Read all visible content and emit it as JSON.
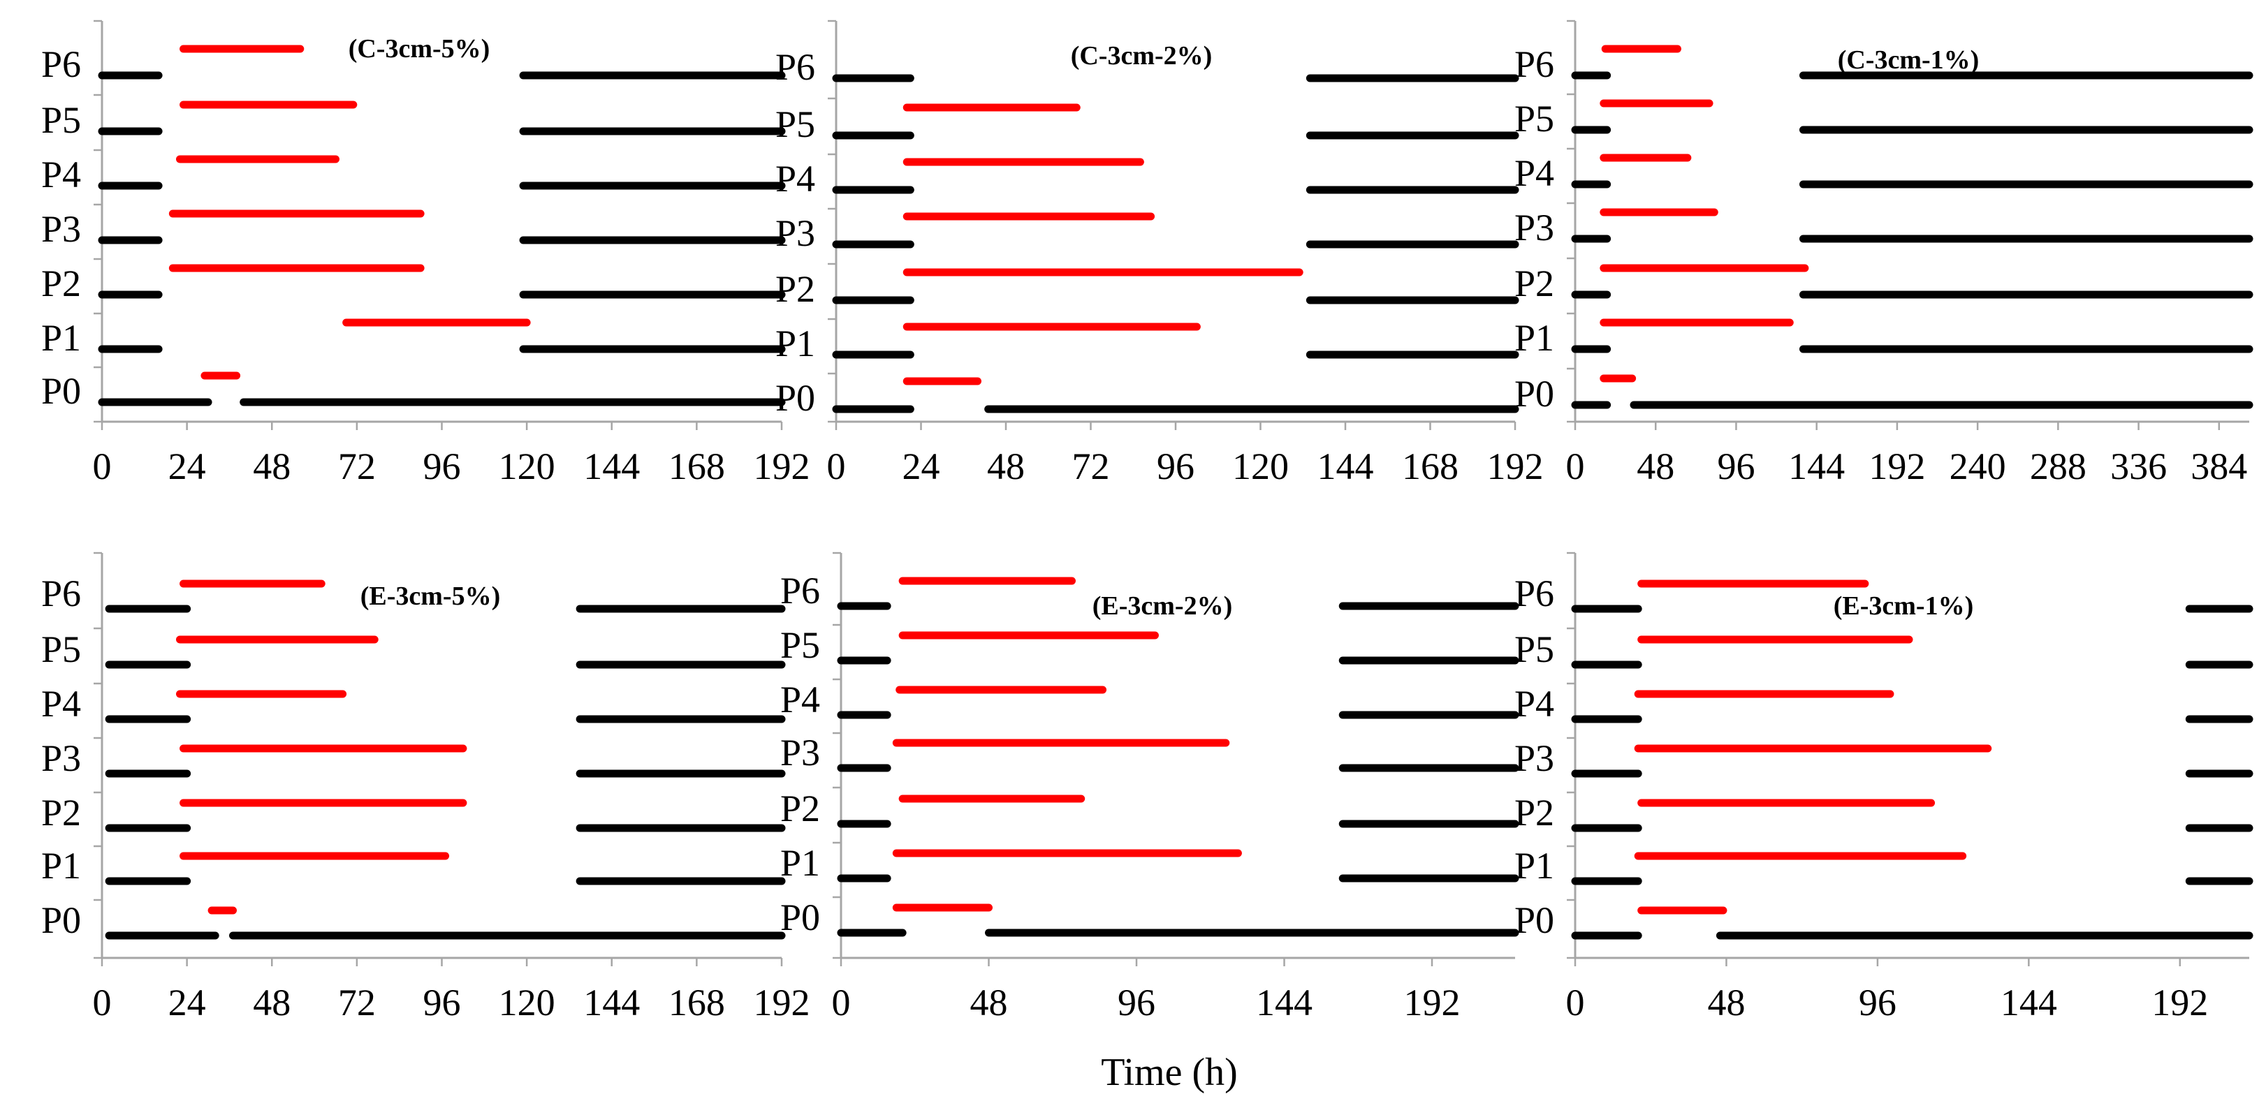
{
  "figure": {
    "xlabel": "Time (h)",
    "colors": {
      "active": "#000000",
      "inactive": "#ff0000",
      "axis": "#a6a6a6"
    }
  },
  "chart_data": [
    {
      "type": "gantt",
      "title": "(C-3cm-5%)",
      "xlim": [
        0,
        192
      ],
      "xticks": [
        0,
        24,
        48,
        72,
        96,
        120,
        144,
        168,
        192
      ],
      "categories": [
        "P0",
        "P1",
        "P2",
        "P3",
        "P4",
        "P5",
        "P6"
      ],
      "series": [
        {
          "name": "black",
          "bars": [
            [
              0,
              30
            ],
            [
              40,
              192
            ],
            [
              0,
              16
            ],
            [
              119,
              192
            ],
            [
              0,
              16
            ],
            [
              119,
              192
            ],
            [
              0,
              16
            ],
            [
              119,
              192
            ],
            [
              0,
              16
            ],
            [
              119,
              192
            ],
            [
              0,
              16
            ],
            [
              119,
              192
            ],
            [
              0,
              16
            ],
            [
              119,
              192
            ]
          ]
        },
        {
          "name": "red",
          "bars": [
            [
              29,
              38
            ],
            [
              69,
              120
            ],
            [
              20,
              90
            ],
            [
              20,
              90
            ],
            [
              22,
              66
            ],
            [
              23,
              71
            ],
            [
              23,
              56
            ]
          ]
        }
      ]
    },
    {
      "type": "gantt",
      "title": "(C-3cm-2%)",
      "xlim": [
        0,
        192
      ],
      "xticks": [
        0,
        24,
        48,
        72,
        96,
        120,
        144,
        168,
        192
      ],
      "categories": [
        "P0",
        "P1",
        "P2",
        "P3",
        "P4",
        "P5",
        "P6"
      ],
      "series": [
        {
          "name": "black",
          "bars": [
            [
              0,
              21
            ],
            [
              43,
              192
            ],
            [
              0,
              21
            ],
            [
              134,
              192
            ],
            [
              0,
              21
            ],
            [
              134,
              192
            ],
            [
              0,
              21
            ],
            [
              134,
              192
            ],
            [
              0,
              21
            ],
            [
              134,
              192
            ],
            [
              0,
              21
            ],
            [
              134,
              192
            ],
            [
              0,
              21
            ],
            [
              134,
              192
            ]
          ]
        },
        {
          "name": "red",
          "bars": [
            [
              20,
              40
            ],
            [
              20,
              102
            ],
            [
              20,
              131
            ],
            [
              20,
              89
            ],
            [
              20,
              86
            ],
            [
              20,
              68
            ]
          ]
        }
      ]
    },
    {
      "type": "gantt",
      "title": "(C-3cm-1%)",
      "xlim": [
        0,
        402
      ],
      "xticks": [
        0,
        48,
        96,
        144,
        192,
        240,
        288,
        336,
        384
      ],
      "categories": [
        "P0",
        "P1",
        "P2",
        "P3",
        "P4",
        "P5",
        "P6"
      ],
      "series": [
        {
          "name": "black",
          "bars": [
            [
              0,
              19
            ],
            [
              35,
              402
            ],
            [
              0,
              19
            ],
            [
              136,
              402
            ],
            [
              0,
              19
            ],
            [
              136,
              402
            ],
            [
              0,
              19
            ],
            [
              136,
              402
            ],
            [
              0,
              19
            ],
            [
              136,
              402
            ],
            [
              0,
              19
            ],
            [
              136,
              402
            ],
            [
              0,
              19
            ],
            [
              136,
              402
            ]
          ]
        },
        {
          "name": "red",
          "bars": [
            [
              17,
              34
            ],
            [
              17,
              128
            ],
            [
              17,
              137
            ],
            [
              17,
              83
            ],
            [
              17,
              67
            ],
            [
              17,
              80
            ],
            [
              18,
              61
            ]
          ]
        }
      ]
    },
    {
      "type": "gantt",
      "title": "(E-3cm-5%)",
      "xlim": [
        0,
        192
      ],
      "xticks": [
        0,
        24,
        48,
        72,
        96,
        120,
        144,
        168,
        192
      ],
      "categories": [
        "P0",
        "P1",
        "P2",
        "P3",
        "P4",
        "P5",
        "P6"
      ],
      "series": [
        {
          "name": "black",
          "bars": [
            [
              2,
              32
            ],
            [
              37,
              192
            ],
            [
              2,
              24
            ],
            [
              135,
              192
            ],
            [
              2,
              24
            ],
            [
              135,
              192
            ],
            [
              2,
              24
            ],
            [
              135,
              192
            ],
            [
              2,
              24
            ],
            [
              135,
              192
            ],
            [
              2,
              24
            ],
            [
              135,
              192
            ],
            [
              2,
              24
            ],
            [
              135,
              192
            ]
          ]
        },
        {
          "name": "red",
          "bars": [
            [
              31,
              37
            ],
            [
              23,
              97
            ],
            [
              23,
              102
            ],
            [
              23,
              102
            ],
            [
              22,
              68
            ],
            [
              22,
              77
            ],
            [
              23,
              62
            ]
          ]
        }
      ]
    },
    {
      "type": "gantt",
      "title": "(E-3cm-2%)",
      "xlim": [
        0,
        219
      ],
      "xticks": [
        0,
        48,
        96,
        144,
        192
      ],
      "categories": [
        "P0",
        "P1",
        "P2",
        "P3",
        "P4",
        "P5",
        "P6"
      ],
      "series": [
        {
          "name": "black",
          "bars": [
            [
              0,
              20
            ],
            [
              48,
              219
            ],
            [
              0,
              15
            ],
            [
              163,
              219
            ],
            [
              0,
              15
            ],
            [
              163,
              219
            ],
            [
              0,
              15
            ],
            [
              163,
              219
            ],
            [
              0,
              15
            ],
            [
              163,
              219
            ],
            [
              0,
              15
            ],
            [
              163,
              219
            ],
            [
              0,
              15
            ],
            [
              163,
              219
            ]
          ]
        },
        {
          "name": "red",
          "bars": [
            [
              18,
              48
            ],
            [
              18,
              129
            ],
            [
              20,
              78
            ],
            [
              18,
              125
            ],
            [
              19,
              85
            ],
            [
              20,
              102
            ],
            [
              20,
              75
            ]
          ]
        }
      ]
    },
    {
      "type": "gantt",
      "title": "(E-3cm-1%)",
      "xlim": [
        0,
        214
      ],
      "xticks": [
        0,
        48,
        96,
        144,
        192
      ],
      "categories": [
        "P0",
        "P1",
        "P2",
        "P3",
        "P4",
        "P5",
        "P6"
      ],
      "series": [
        {
          "name": "black",
          "bars": [
            [
              0,
              20
            ],
            [
              46,
              214
            ],
            [
              0,
              20
            ],
            [
              195,
              214
            ],
            [
              0,
              20
            ],
            [
              195,
              214
            ],
            [
              0,
              20
            ],
            [
              195,
              214
            ],
            [
              0,
              20
            ],
            [
              195,
              214
            ],
            [
              0,
              20
            ],
            [
              195,
              214
            ],
            [
              0,
              20
            ],
            [
              195,
              214
            ]
          ]
        },
        {
          "name": "red",
          "bars": [
            [
              21,
              47
            ],
            [
              20,
              123
            ],
            [
              21,
              113
            ],
            [
              20,
              131
            ],
            [
              20,
              100
            ],
            [
              21,
              106
            ],
            [
              21,
              92
            ]
          ]
        }
      ]
    }
  ]
}
